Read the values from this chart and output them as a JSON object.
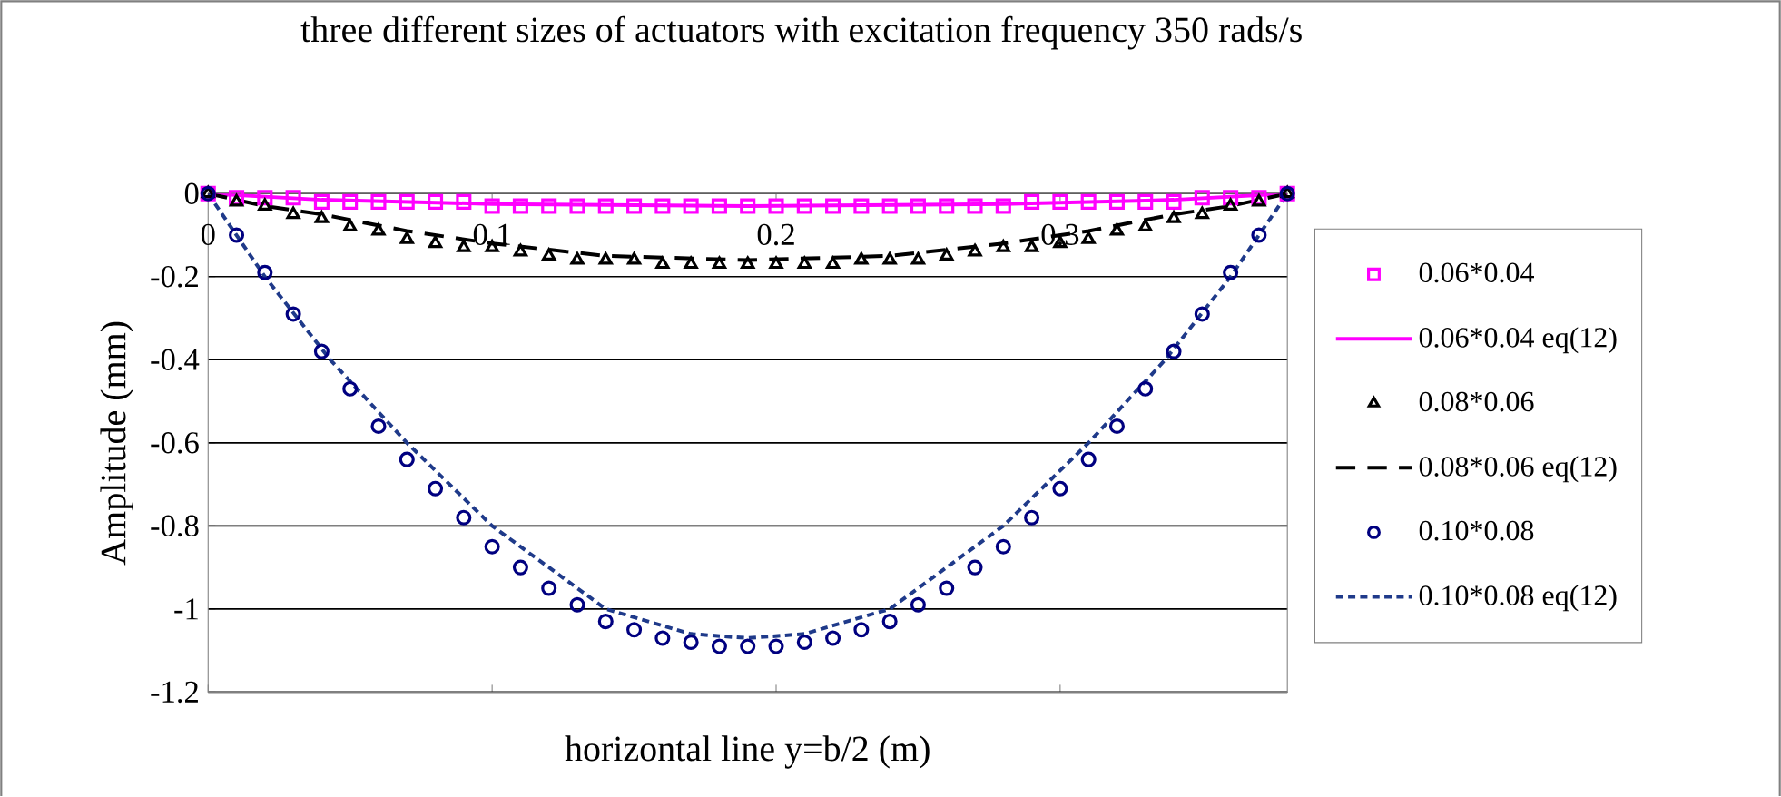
{
  "chart_data": {
    "type": "line",
    "title": "three different sizes of actuators with excitation frequency 350 rads/s",
    "xlabel": "horizontal line y=b/2 (m)",
    "ylabel": "Amplitude (mm)",
    "xlim": [
      0,
      0.38
    ],
    "ylim": [
      -1.2,
      0
    ],
    "xticks": [
      0,
      0.1,
      0.2,
      0.3
    ],
    "yticks": [
      0,
      -0.2,
      -0.4,
      -0.6,
      -0.8,
      -1,
      -1.2
    ],
    "grid": "y",
    "legend": "right",
    "series": [
      {
        "name": "0.06*0.04",
        "type": "scatter",
        "marker": "square",
        "color": "#ff00ff",
        "x": [
          0,
          0.01,
          0.02,
          0.03,
          0.04,
          0.05,
          0.06,
          0.07,
          0.08,
          0.09,
          0.1,
          0.11,
          0.12,
          0.13,
          0.14,
          0.15,
          0.16,
          0.17,
          0.18,
          0.19,
          0.2,
          0.21,
          0.22,
          0.23,
          0.24,
          0.25,
          0.26,
          0.27,
          0.28,
          0.29,
          0.3,
          0.31,
          0.32,
          0.33,
          0.34,
          0.35,
          0.36,
          0.37,
          0.38
        ],
        "values": [
          0,
          -0.01,
          -0.01,
          -0.01,
          -0.02,
          -0.02,
          -0.02,
          -0.02,
          -0.02,
          -0.02,
          -0.03,
          -0.03,
          -0.03,
          -0.03,
          -0.03,
          -0.03,
          -0.03,
          -0.03,
          -0.03,
          -0.03,
          -0.03,
          -0.03,
          -0.03,
          -0.03,
          -0.03,
          -0.03,
          -0.03,
          -0.03,
          -0.03,
          -0.02,
          -0.02,
          -0.02,
          -0.02,
          -0.02,
          -0.02,
          -0.01,
          -0.01,
          -0.01,
          0
        ]
      },
      {
        "name": "0.06*0.04 eq(12)",
        "type": "line",
        "line_style": "solid",
        "color": "#ff00ff",
        "x": [
          0,
          0.04,
          0.1,
          0.19,
          0.28,
          0.34,
          0.38
        ],
        "values": [
          0,
          -0.015,
          -0.025,
          -0.03,
          -0.025,
          -0.015,
          0
        ]
      },
      {
        "name": "0.08*0.06",
        "type": "scatter",
        "marker": "triangle",
        "color": "#000000",
        "x": [
          0,
          0.01,
          0.02,
          0.03,
          0.04,
          0.05,
          0.06,
          0.07,
          0.08,
          0.09,
          0.1,
          0.11,
          0.12,
          0.13,
          0.14,
          0.15,
          0.16,
          0.17,
          0.18,
          0.19,
          0.2,
          0.21,
          0.22,
          0.23,
          0.24,
          0.25,
          0.26,
          0.27,
          0.28,
          0.29,
          0.3,
          0.31,
          0.32,
          0.33,
          0.34,
          0.35,
          0.36,
          0.37,
          0.38
        ],
        "values": [
          0,
          -0.02,
          -0.03,
          -0.05,
          -0.06,
          -0.08,
          -0.09,
          -0.11,
          -0.12,
          -0.13,
          -0.13,
          -0.14,
          -0.15,
          -0.16,
          -0.16,
          -0.16,
          -0.17,
          -0.17,
          -0.17,
          -0.17,
          -0.17,
          -0.17,
          -0.17,
          -0.16,
          -0.16,
          -0.16,
          -0.15,
          -0.14,
          -0.13,
          -0.13,
          -0.12,
          -0.11,
          -0.09,
          -0.08,
          -0.06,
          -0.05,
          -0.03,
          -0.02,
          0
        ]
      },
      {
        "name": "0.08*0.06 eq(12)",
        "type": "line",
        "line_style": "dashed",
        "color": "#000000",
        "x": [
          0,
          0.02,
          0.04,
          0.07,
          0.1,
          0.14,
          0.19,
          0.24,
          0.28,
          0.31,
          0.34,
          0.36,
          0.38
        ],
        "values": [
          0,
          -0.03,
          -0.05,
          -0.09,
          -0.12,
          -0.15,
          -0.16,
          -0.15,
          -0.12,
          -0.09,
          -0.05,
          -0.03,
          0
        ]
      },
      {
        "name": "0.10*0.08",
        "type": "scatter",
        "marker": "circle",
        "color": "#000080",
        "x": [
          0,
          0.01,
          0.02,
          0.03,
          0.04,
          0.05,
          0.06,
          0.07,
          0.08,
          0.09,
          0.1,
          0.11,
          0.12,
          0.13,
          0.14,
          0.15,
          0.16,
          0.17,
          0.18,
          0.19,
          0.2,
          0.21,
          0.22,
          0.23,
          0.24,
          0.25,
          0.26,
          0.27,
          0.28,
          0.29,
          0.3,
          0.31,
          0.32,
          0.33,
          0.34,
          0.35,
          0.36,
          0.37,
          0.38
        ],
        "values": [
          0,
          -0.1,
          -0.19,
          -0.29,
          -0.38,
          -0.47,
          -0.56,
          -0.64,
          -0.71,
          -0.78,
          -0.85,
          -0.9,
          -0.95,
          -0.99,
          -1.03,
          -1.05,
          -1.07,
          -1.08,
          -1.09,
          -1.09,
          -1.09,
          -1.08,
          -1.07,
          -1.05,
          -1.03,
          -0.99,
          -0.95,
          -0.9,
          -0.85,
          -0.78,
          -0.71,
          -0.64,
          -0.56,
          -0.47,
          -0.38,
          -0.29,
          -0.19,
          -0.1,
          0
        ]
      },
      {
        "name": "0.10*0.08 eq(12)",
        "type": "line",
        "line_style": "dotted",
        "color": "#1f3a8a",
        "x": [
          0,
          0.02,
          0.043,
          0.07,
          0.1,
          0.14,
          0.17,
          0.19,
          0.21,
          0.24,
          0.28,
          0.31,
          0.337,
          0.36,
          0.38
        ],
        "values": [
          0,
          -0.2,
          -0.4,
          -0.6,
          -0.8,
          -1,
          -1.06,
          -1.07,
          -1.06,
          -1,
          -0.8,
          -0.6,
          -0.4,
          -0.2,
          0
        ]
      }
    ]
  }
}
